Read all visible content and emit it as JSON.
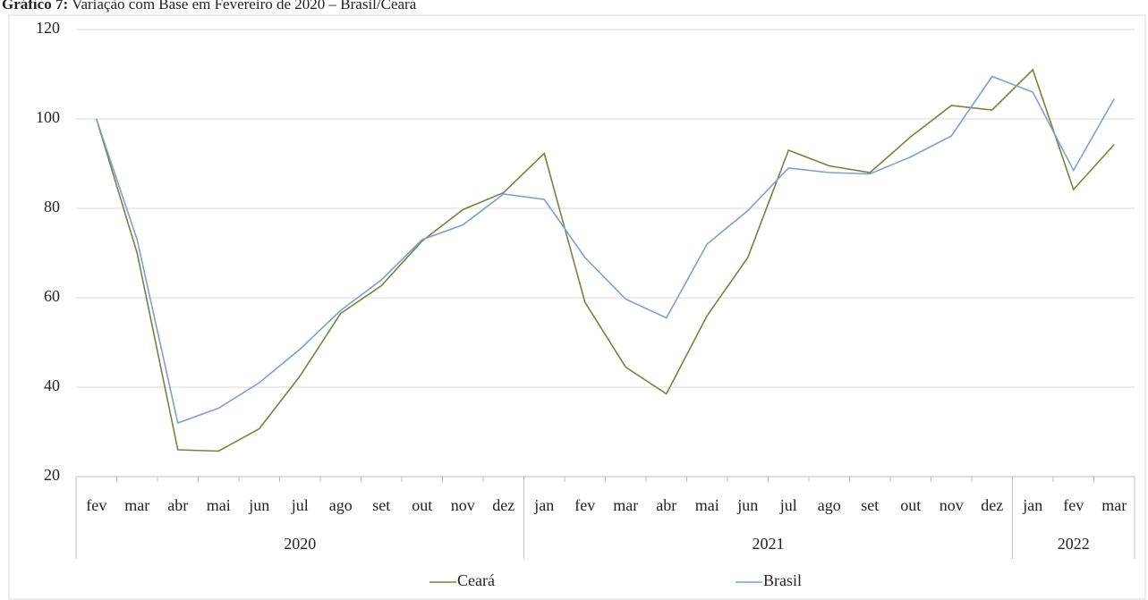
{
  "chart_data": {
    "type": "line",
    "title_label": "Gráfico 7:",
    "title": "Variação com Base em Fevereiro de 2020 – Brasil/Ceará",
    "category_groups": [
      {
        "name": "2020",
        "categories": [
          "fev",
          "mar",
          "abr",
          "mai",
          "jun",
          "jul",
          "ago",
          "set",
          "out",
          "nov",
          "dez"
        ]
      },
      {
        "name": "2021",
        "categories": [
          "jan",
          "fev",
          "mar",
          "abr",
          "mai",
          "jun",
          "jul",
          "ago",
          "set",
          "out",
          "nov",
          "dez"
        ]
      },
      {
        "name": "2022",
        "categories": [
          "jan",
          "fev",
          "mar"
        ]
      }
    ],
    "series": [
      {
        "name": "Ceará",
        "color": "#76823f",
        "values": [
          100,
          70,
          26,
          25.7,
          30.7,
          42.5,
          56.5,
          62.7,
          72.7,
          79.7,
          83.5,
          92.3,
          59,
          44.5,
          38.5,
          56,
          69,
          93,
          89.5,
          88,
          96,
          103,
          102,
          111,
          84.2,
          94.3
        ]
      },
      {
        "name": "Brasil",
        "color": "#7c9fd3",
        "values": [
          100,
          73,
          32,
          35.3,
          41,
          48.5,
          57.2,
          64,
          73,
          76.3,
          83.2,
          82,
          69,
          59.7,
          55.5,
          72,
          79.5,
          89,
          88,
          87.7,
          91.5,
          96.2,
          109.5,
          106,
          88.5,
          104.5
        ]
      }
    ],
    "ylim": [
      20,
      120
    ],
    "yticks": [
      20,
      40,
      60,
      80,
      100,
      120
    ],
    "grid": true,
    "legend": "bottom"
  }
}
